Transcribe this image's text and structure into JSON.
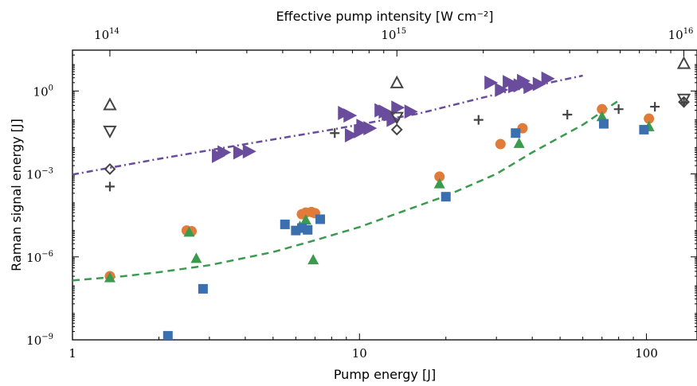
{
  "chart_data": {
    "type": "scatter",
    "xlabel": "Pump energy [J]",
    "ylabel": "Raman signal energy [J]",
    "top_xlabel": "Effective pump intensity [W cm⁻²]",
    "xscale": "log",
    "yscale": "log",
    "xlim": [
      1,
      150
    ],
    "ylim": [
      1e-09,
      30
    ],
    "grid": false,
    "legend": "none",
    "x_ticks": [
      {
        "value": 1,
        "label": "1"
      },
      {
        "value": 10,
        "label": "10"
      },
      {
        "value": 100,
        "label": "100"
      }
    ],
    "y_ticks": [
      {
        "value": 1e-09,
        "base": "10",
        "exp": "−9"
      },
      {
        "value": 1e-06,
        "base": "10",
        "exp": "−6"
      },
      {
        "value": 0.001,
        "base": "10",
        "exp": "−3"
      },
      {
        "value": 1,
        "base": "10",
        "exp": "0"
      }
    ],
    "top_ticks": [
      {
        "x": 1.35,
        "base": "10",
        "exp": "14"
      },
      {
        "x": 13.5,
        "base": "10",
        "exp": "15"
      },
      {
        "x": 135,
        "base": "10",
        "exp": "16"
      }
    ],
    "series": [
      {
        "marker": "triangle-right",
        "color": "#6a4c9c",
        "points": [
          [
            3.2,
            0.0045
          ],
          [
            3.35,
            0.006
          ],
          [
            3.8,
            0.006
          ],
          [
            4.1,
            0.0065
          ],
          [
            8.8,
            0.16
          ],
          [
            9.2,
            0.13
          ],
          [
            9.3,
            0.025
          ],
          [
            10.0,
            0.035
          ],
          [
            10.2,
            0.055
          ],
          [
            10.8,
            0.045
          ],
          [
            11.8,
            0.2
          ],
          [
            12.2,
            0.18
          ],
          [
            12.5,
            0.15
          ],
          [
            13.0,
            0.09
          ],
          [
            13.5,
            0.25
          ],
          [
            15.0,
            0.18
          ],
          [
            28.5,
            2.0
          ],
          [
            31.0,
            1.1
          ],
          [
            33.0,
            2.1
          ],
          [
            34.5,
            1.5
          ],
          [
            36.0,
            1.6
          ],
          [
            37.0,
            2.3
          ],
          [
            39.0,
            1.4
          ],
          [
            42.0,
            1.8
          ],
          [
            45.0,
            2.8
          ]
        ]
      },
      {
        "marker": "circle",
        "color": "#e07b39",
        "points": [
          [
            1.35,
            2e-07
          ],
          [
            2.5,
            9e-06
          ],
          [
            2.6,
            8.5e-06
          ],
          [
            6.3,
            3.5e-05
          ],
          [
            6.5,
            4e-05
          ],
          [
            6.8,
            4.2e-05
          ],
          [
            7.0,
            3.8e-05
          ],
          [
            19.0,
            0.0008
          ],
          [
            31.0,
            0.012
          ],
          [
            37.0,
            0.045
          ],
          [
            70.0,
            0.22
          ],
          [
            102.0,
            0.1
          ]
        ]
      },
      {
        "marker": "triangle-up",
        "color": "#3a9a4e",
        "points": [
          [
            1.35,
            1.8e-07
          ],
          [
            2.55,
            8e-06
          ],
          [
            2.7,
            9e-07
          ],
          [
            6.2,
            1.3e-05
          ],
          [
            6.5,
            2.2e-05
          ],
          [
            6.9,
            8e-07
          ],
          [
            19.0,
            0.00045
          ],
          [
            36.0,
            0.013
          ],
          [
            70.0,
            0.12
          ],
          [
            102.0,
            0.052
          ]
        ]
      },
      {
        "marker": "square",
        "color": "#3a6fb0",
        "points": [
          [
            2.15,
            1.4e-09
          ],
          [
            2.85,
            7e-08
          ],
          [
            5.5,
            1.5e-05
          ],
          [
            6.0,
            9e-06
          ],
          [
            6.3,
            1.1e-05
          ],
          [
            6.6,
            9.5e-06
          ],
          [
            7.3,
            2.3e-05
          ],
          [
            20.0,
            0.00015
          ],
          [
            35.0,
            0.03
          ],
          [
            71.0,
            0.065
          ],
          [
            98.0,
            0.04
          ]
        ]
      },
      {
        "marker": "plus",
        "color": "#444444",
        "points": [
          [
            1.35,
            0.00035
          ],
          [
            8.2,
            0.03
          ],
          [
            26.0,
            0.09
          ],
          [
            53.0,
            0.14
          ],
          [
            80.0,
            0.22
          ],
          [
            107.0,
            0.27
          ],
          [
            135.0,
            0.38
          ]
        ]
      },
      {
        "marker": "triangle-up-open",
        "color": "#444444",
        "points": [
          [
            1.35,
            0.32
          ],
          [
            13.5,
            2.0
          ],
          [
            135.0,
            10.0
          ]
        ]
      },
      {
        "marker": "triangle-down-open",
        "color": "#444444",
        "points": [
          [
            1.35,
            0.035
          ],
          [
            13.5,
            0.11
          ],
          [
            135.0,
            0.5
          ]
        ]
      },
      {
        "marker": "diamond-open",
        "color": "#444444",
        "points": [
          [
            1.35,
            0.0015
          ],
          [
            13.5,
            0.04
          ],
          [
            135.0,
            0.4
          ]
        ]
      }
    ],
    "lines": [
      {
        "style": "dash-dot",
        "color": "#6a4c9c",
        "points": [
          [
            1,
            0.00095
          ],
          [
            2,
            0.0035
          ],
          [
            4,
            0.012
          ],
          [
            8,
            0.04
          ],
          [
            16,
            0.15
          ],
          [
            32,
            0.9
          ],
          [
            60,
            3.6
          ]
        ]
      },
      {
        "style": "dashed",
        "color": "#3a9a4e",
        "points": [
          [
            1,
            1.4e-07
          ],
          [
            1.5,
            2e-07
          ],
          [
            2,
            2.8e-07
          ],
          [
            3,
            5e-07
          ],
          [
            5,
            1.5e-06
          ],
          [
            7,
            4e-06
          ],
          [
            10,
            1.2e-05
          ],
          [
            15,
            5.5e-05
          ],
          [
            20,
            0.00016
          ],
          [
            30,
            0.001
          ],
          [
            40,
            0.006
          ],
          [
            60,
            0.06
          ],
          [
            80,
            0.45
          ]
        ]
      }
    ]
  }
}
